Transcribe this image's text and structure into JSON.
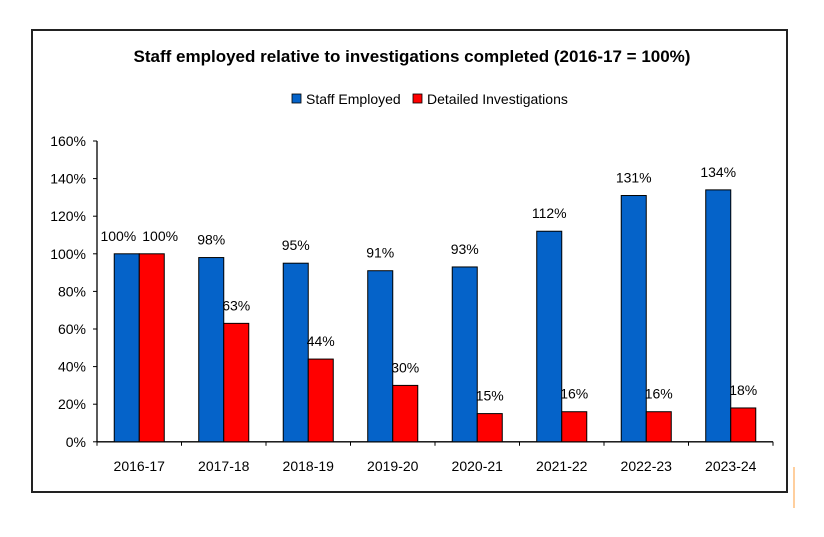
{
  "chart_data": {
    "type": "bar",
    "title": "Staff employed relative to investigations completed (2016-17 = 100%)",
    "xlabel": "",
    "ylabel": "",
    "categories": [
      "2016-17",
      "2017-18",
      "2018-19",
      "2019-20",
      "2020-21",
      "2021-22",
      "2022-23",
      "2023-24"
    ],
    "series": [
      {
        "name": "Staff Employed",
        "color": "#0563C9",
        "values": [
          100,
          98,
          95,
          91,
          93,
          112,
          131,
          134
        ],
        "labels": [
          "100%",
          "98%",
          "95%",
          "91%",
          "93%",
          "112%",
          "131%",
          "134%"
        ]
      },
      {
        "name": "Detailed Investigations",
        "color": "#FF0000",
        "values": [
          100,
          63,
          44,
          30,
          15,
          16,
          16,
          18
        ],
        "labels": [
          "100%",
          "63%",
          "44%",
          "30%",
          "15%",
          "16%",
          "16%",
          "18%"
        ]
      }
    ],
    "ylim": [
      0,
      160
    ],
    "yticks": [
      0,
      20,
      40,
      60,
      80,
      100,
      120,
      140,
      160
    ],
    "ytick_labels": [
      "0%",
      "20%",
      "40%",
      "60%",
      "80%",
      "100%",
      "120%",
      "140%",
      "160%"
    ],
    "grid": false,
    "legend": {
      "placement": "top-center",
      "entries": [
        "Staff Employed",
        "Detailed Investigations"
      ]
    },
    "data_labels": true
  },
  "colors": {
    "frame": "#222222",
    "axis": "#000000",
    "bar_outline": "#000000",
    "accent_line": "#FFCF9E"
  }
}
